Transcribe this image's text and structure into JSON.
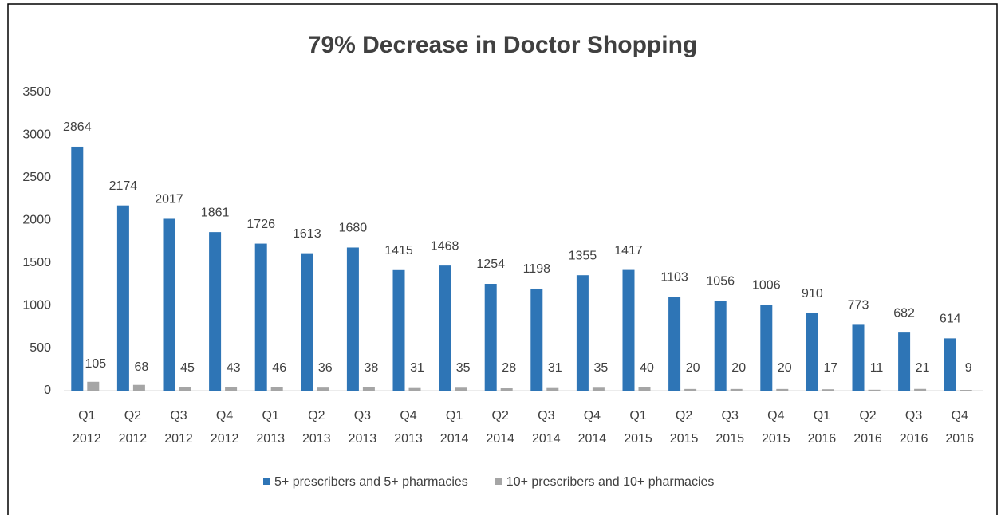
{
  "chart_data": {
    "type": "bar",
    "title": "79% Decrease in Doctor Shopping",
    "categories": [
      "Q1 2012",
      "Q2 2012",
      "Q3 2012",
      "Q4 2012",
      "Q1 2013",
      "Q2 2013",
      "Q3 2013",
      "Q4 2013",
      "Q1 2014",
      "Q2 2014",
      "Q3 2014",
      "Q4 2014",
      "Q1 2015",
      "Q2 2015",
      "Q3 2015",
      "Q4 2015",
      "Q1 2016",
      "Q2 2016",
      "Q3 2016",
      "Q4 2016"
    ],
    "series": [
      {
        "name": "5+ prescribers and 5+ pharmacies",
        "color": "#2e75b6",
        "values": [
          2864,
          2174,
          2017,
          1861,
          1726,
          1613,
          1680,
          1415,
          1468,
          1254,
          1198,
          1355,
          1417,
          1103,
          1056,
          1006,
          910,
          773,
          682,
          614
        ]
      },
      {
        "name": "10+ prescribers and 10+ pharmacies",
        "color": "#a5a5a5",
        "values": [
          105,
          68,
          45,
          43,
          46,
          36,
          38,
          31,
          35,
          28,
          31,
          35,
          40,
          20,
          20,
          20,
          17,
          11,
          21,
          9
        ]
      }
    ],
    "ylim": [
      0,
      3500
    ],
    "yticks": [
      0,
      500,
      1000,
      1500,
      2000,
      2500,
      3000,
      3500
    ],
    "grid": false,
    "legend": "bottom"
  }
}
